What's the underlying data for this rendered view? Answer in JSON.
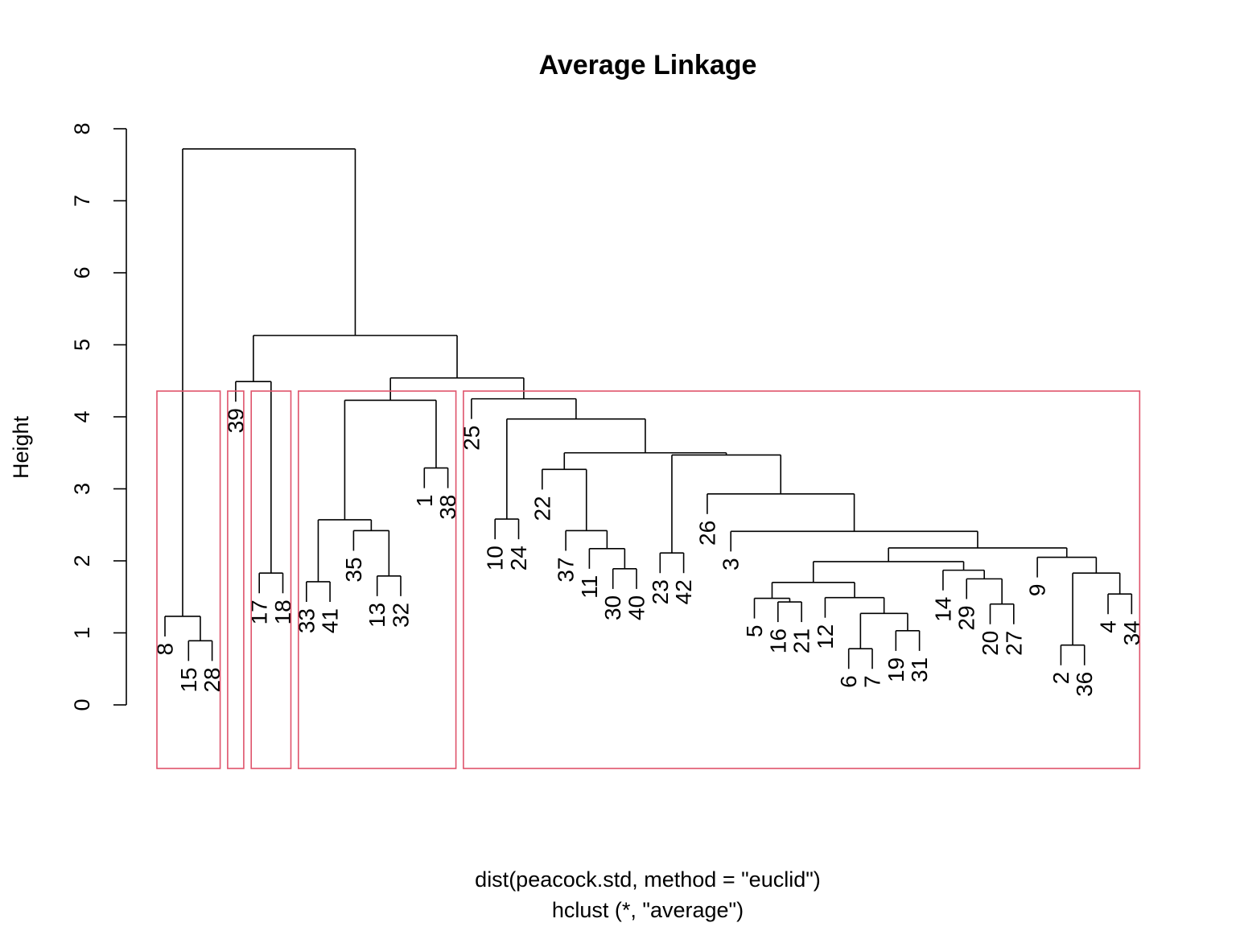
{
  "chart_data": {
    "type": "dendrogram",
    "title": "Average Linkage",
    "ylabel": "Height",
    "xlabel_lines": [
      "dist(peacock.std, method = \"euclid\")",
      "hclust (*, \"average\")"
    ],
    "ylim": [
      0,
      8
    ],
    "yticks": [
      0,
      1,
      2,
      3,
      4,
      5,
      6,
      7,
      8
    ],
    "leaf_order": [
      "8",
      "15",
      "28",
      "39",
      "17",
      "18",
      "33",
      "41",
      "35",
      "13",
      "32",
      "1",
      "38",
      "25",
      "10",
      "24",
      "22",
      "37",
      "11",
      "30",
      "40",
      "23",
      "42",
      "26",
      "3",
      "5",
      "16",
      "21",
      "12",
      "6",
      "7",
      "19",
      "31",
      "14",
      "29",
      "20",
      "27",
      "9",
      "2",
      "36",
      "4",
      "34"
    ],
    "merges": [
      {
        "left": "15",
        "right": "28",
        "height": 0.89
      },
      {
        "left": "8",
        "right": [
          "15",
          "28"
        ],
        "height": 1.23
      },
      {
        "left": "17",
        "right": "18",
        "height": 1.83
      },
      {
        "left": [
          "39"
        ],
        "right": [
          "17",
          "18"
        ],
        "height": 4.49
      },
      {
        "left": "33",
        "right": "41",
        "height": 1.71
      },
      {
        "left": "13",
        "right": "32",
        "height": 1.79
      },
      {
        "left": "35",
        "right": [
          "13",
          "32"
        ],
        "height": 2.42
      },
      {
        "left": [
          "33",
          "41"
        ],
        "right": [
          "35",
          "13",
          "32"
        ],
        "height": 2.57
      },
      {
        "left": "1",
        "right": "38",
        "height": 3.29
      },
      {
        "left": [
          "33",
          "41",
          "35",
          "13",
          "32"
        ],
        "right": [
          "1",
          "38"
        ],
        "height": 4.23
      },
      {
        "left": "10",
        "right": "24",
        "height": 2.58
      },
      {
        "left": "30",
        "right": "40",
        "height": 1.89
      },
      {
        "left": "11",
        "right": [
          "30",
          "40"
        ],
        "height": 2.17
      },
      {
        "left": "37",
        "right": [
          "11",
          "30",
          "40"
        ],
        "height": 2.42
      },
      {
        "left": "22",
        "right": [
          "37",
          "11",
          "30",
          "40"
        ],
        "height": 3.27
      },
      {
        "left": "23",
        "right": "42",
        "height": 2.11
      },
      {
        "left": "16",
        "right": "21",
        "height": 1.43
      },
      {
        "left": "5",
        "right": [
          "16",
          "21"
        ],
        "height": 1.48
      },
      {
        "left": "6",
        "right": "7",
        "height": 0.78
      },
      {
        "left": "19",
        "right": "31",
        "height": 1.03
      },
      {
        "left": [
          "6",
          "7"
        ],
        "right": [
          "19",
          "31"
        ],
        "height": 1.27
      },
      {
        "left": "12",
        "right": [
          "6",
          "7",
          "19",
          "31"
        ],
        "height": 1.49
      },
      {
        "left": [
          "5",
          "16",
          "21"
        ],
        "right": [
          "12",
          "6",
          "7",
          "19",
          "31"
        ],
        "height": 1.7
      },
      {
        "left": "20",
        "right": "27",
        "height": 1.4
      },
      {
        "left": "29",
        "right": [
          "20",
          "27"
        ],
        "height": 1.75
      },
      {
        "left": "14",
        "right": [
          "29",
          "20",
          "27"
        ],
        "height": 1.87
      },
      {
        "left": [
          "5",
          "16",
          "21",
          "12",
          "6",
          "7",
          "19",
          "31"
        ],
        "right": [
          "14",
          "29",
          "20",
          "27"
        ],
        "height": 1.99
      },
      {
        "left": "2",
        "right": "36",
        "height": 0.83
      },
      {
        "left": "4",
        "right": "34",
        "height": 1.54
      },
      {
        "left": [
          "2",
          "36"
        ],
        "right": [
          "4",
          "34"
        ],
        "height": 1.83
      },
      {
        "left": "9",
        "right": [
          "2",
          "36",
          "4",
          "34"
        ],
        "height": 2.05
      },
      {
        "left": [
          "5",
          "...",
          "27"
        ],
        "right": [
          "9",
          "...",
          "34"
        ],
        "height": 2.18
      },
      {
        "left": "3",
        "right": [
          "5",
          "...",
          "34"
        ],
        "height": 2.41
      },
      {
        "left": "26",
        "right": [
          "3",
          "...",
          "34"
        ],
        "height": 2.93
      },
      {
        "left": [
          "23",
          "42"
        ],
        "right": [
          "26",
          "...",
          "34"
        ],
        "height": 3.47
      },
      {
        "left": [
          "22",
          "37",
          "11",
          "30",
          "40"
        ],
        "right": [
          "23",
          "...",
          "34"
        ],
        "height": 3.5
      },
      {
        "left": [
          "10",
          "24"
        ],
        "right": [
          "22",
          "...",
          "34"
        ],
        "height": 3.97
      },
      {
        "left": "25",
        "right": [
          "10",
          "...",
          "34"
        ],
        "height": 4.25
      },
      {
        "left": [
          "33",
          "...",
          "38"
        ],
        "right": [
          "25",
          "...",
          "34"
        ],
        "height": 4.54
      },
      {
        "left": [
          "39",
          "17",
          "18"
        ],
        "right": [
          "33",
          "...",
          "34"
        ],
        "height": 5.13
      },
      {
        "left": [
          "8",
          "15",
          "28"
        ],
        "right": [
          "39",
          "...",
          "34"
        ],
        "height": 7.72
      }
    ],
    "clusters": [
      [
        "8",
        "15",
        "28"
      ],
      [
        "39"
      ],
      [
        "17",
        "18"
      ],
      [
        "33",
        "41",
        "35",
        "13",
        "32",
        "1",
        "38"
      ],
      [
        "25",
        "10",
        "24",
        "22",
        "37",
        "11",
        "30",
        "40",
        "23",
        "42",
        "26",
        "3",
        "5",
        "16",
        "21",
        "12",
        "6",
        "7",
        "19",
        "31",
        "14",
        "29",
        "20",
        "27",
        "9",
        "2",
        "36",
        "4",
        "34"
      ]
    ],
    "cluster_box_color": "#DF536B",
    "line_color": "#000000"
  }
}
